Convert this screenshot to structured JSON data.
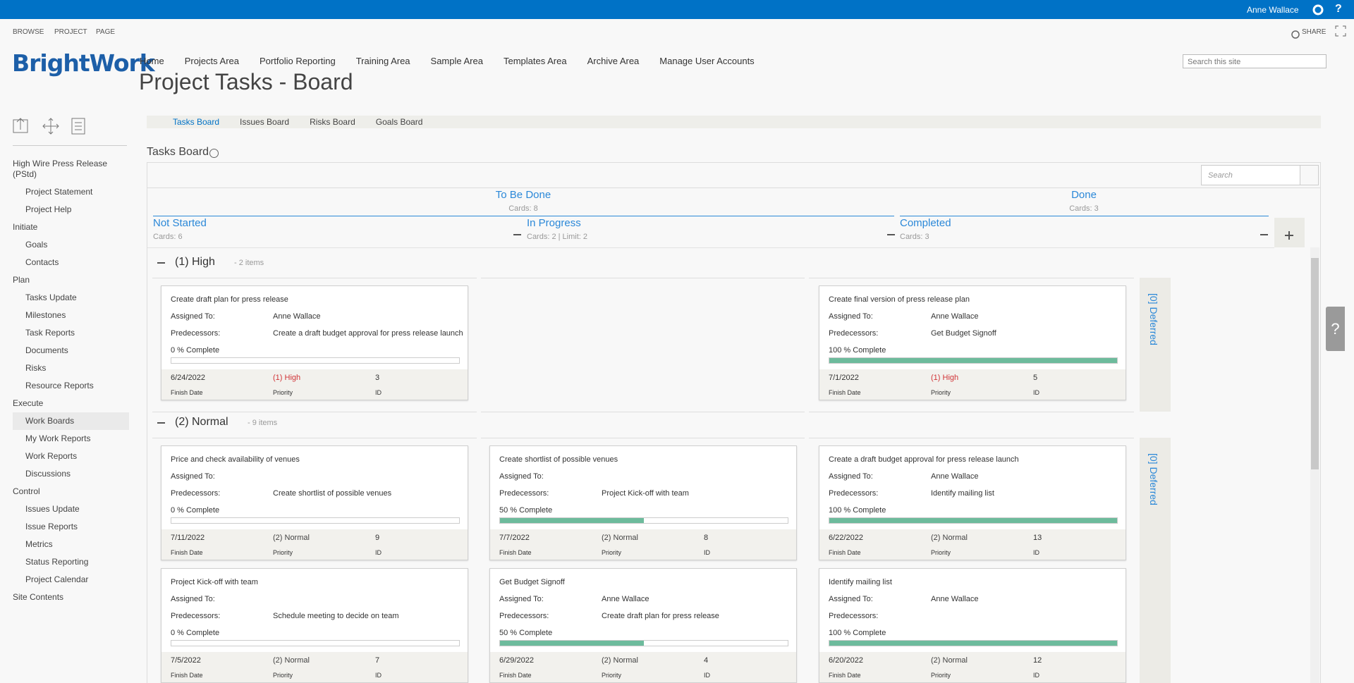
{
  "topbar": {
    "user": "Anne Wallace",
    "help": "?"
  },
  "ribbon": {
    "tabs": [
      "BROWSE",
      "PROJECT",
      "PAGE"
    ],
    "share": "SHARE"
  },
  "logo": "BrightWork",
  "topnav": [
    "Home",
    "Projects Area",
    "Portfolio Reporting",
    "Training Area",
    "Sample Area",
    "Templates Area",
    "Archive Area",
    "Manage User Accounts"
  ],
  "site_search": "Search this site",
  "page_title": "Project Tasks - Board",
  "board_tabs": [
    "Tasks Board",
    "Issues Board",
    "Risks Board",
    "Goals Board"
  ],
  "leftnav": [
    {
      "label": "High Wire Press Release (PStd)",
      "items": [
        "Project Statement",
        "Project Help"
      ]
    },
    {
      "label": "Initiate",
      "items": [
        "Goals",
        "Contacts"
      ]
    },
    {
      "label": "Plan",
      "items": [
        "Tasks Update",
        "Milestones",
        "Task Reports",
        "Documents",
        "Risks",
        "Resource Reports"
      ]
    },
    {
      "label": "Execute",
      "items": [
        "Work Boards",
        "My Work Reports",
        "Work Reports",
        "Discussions"
      ]
    },
    {
      "label": "Control",
      "items": [
        "Issues Update",
        "Issue Reports",
        "Metrics",
        "Status Reporting",
        "Project Calendar"
      ]
    },
    {
      "label": "Site Contents"
    }
  ],
  "side_help": "?",
  "board": {
    "title": "Tasks Board",
    "search": "Search",
    "groups": [
      {
        "title": "To Be Done",
        "meta": "Cards: 8"
      },
      {
        "title": "Done",
        "meta": "Cards: 3"
      }
    ],
    "columns": [
      {
        "title": "Not Started",
        "meta": "Cards: 6"
      },
      {
        "title": "In Progress",
        "meta": "Cards: 2 | Limit: 2"
      },
      {
        "title": "Completed",
        "meta": "Cards: 3"
      }
    ],
    "deferred": "[0] Deferred",
    "labels": {
      "assigned": "Assigned To:",
      "predecessors": "Predecessors:",
      "finish": "Finish Date",
      "priority": "Priority",
      "id": "ID"
    },
    "lanes": [
      {
        "title": "(1) High",
        "count": "- 2 items",
        "priority_color": "#d13438",
        "cells": [
          [
            {
              "title": "Create draft plan for press release",
              "assigned": "Anne Wallace",
              "predecessors": "Create a draft budget approval for press release launch",
              "percent": 0,
              "percent_label": "0 % Complete",
              "finish": "6/24/2022",
              "priority": "(1) High",
              "id": 3
            }
          ],
          [],
          [
            {
              "title": "Create final version of press release plan",
              "assigned": "Anne Wallace",
              "predecessors": "Get Budget Signoff",
              "percent": 100,
              "percent_label": "100 % Complete",
              "finish": "7/1/2022",
              "priority": "(1) High",
              "id": 5
            }
          ]
        ]
      },
      {
        "title": "(2) Normal",
        "count": "- 9 items",
        "priority_color": "#444444",
        "cells": [
          [
            {
              "title": "Price and check availability of venues",
              "predecessors": "Create shortlist of possible venues",
              "percent": 0,
              "percent_label": "0 % Complete",
              "finish": "7/11/2022",
              "priority": "(2) Normal",
              "id": 9
            },
            {
              "title": "Project Kick-off with team",
              "predecessors": "Schedule meeting to decide on team",
              "percent": 0,
              "percent_label": "0 % Complete",
              "finish": "7/5/2022",
              "priority": "(2) Normal",
              "id": 7
            }
          ],
          [
            {
              "title": "Create shortlist of possible venues",
              "predecessors": "Project Kick-off with team",
              "percent": 50,
              "percent_label": "50 % Complete",
              "finish": "7/7/2022",
              "priority": "(2) Normal",
              "id": 8
            },
            {
              "title": "Get Budget Signoff",
              "assigned": "Anne Wallace",
              "predecessors": "Create draft plan for press release",
              "percent": 50,
              "percent_label": "50 % Complete",
              "finish": "6/29/2022",
              "priority": "(2) Normal",
              "id": 4
            }
          ],
          [
            {
              "title": "Create a draft budget approval for press release launch",
              "assigned": "Anne Wallace",
              "predecessors": "Identify mailing list",
              "percent": 100,
              "percent_label": "100 % Complete",
              "finish": "6/22/2022",
              "priority": "(2) Normal",
              "id": 13
            },
            {
              "title": "Identify mailing list",
              "assigned": "Anne Wallace",
              "percent": 100,
              "percent_label": "100 % Complete",
              "finish": "6/20/2022",
              "priority": "(2) Normal",
              "id": 12
            }
          ]
        ]
      }
    ]
  }
}
